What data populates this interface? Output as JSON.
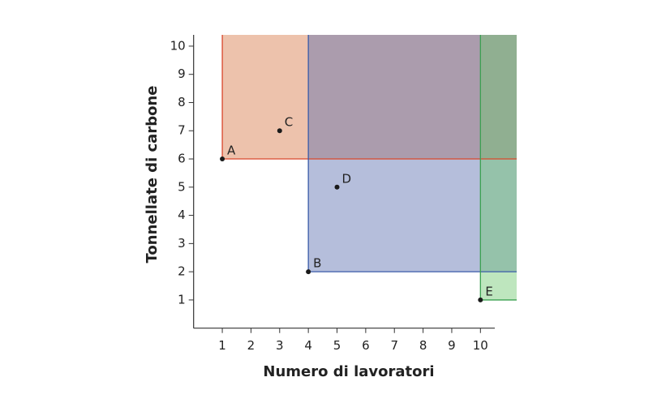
{
  "chart_data": {
    "type": "scatter",
    "x_label": "Numero di lavoratori",
    "y_label": "Tonnellate di carbone",
    "labels": [
      "A",
      "B",
      "C",
      "D",
      "E"
    ],
    "x": [
      1,
      4,
      3,
      5,
      10
    ],
    "values": [
      6,
      2,
      7,
      5,
      1
    ],
    "color": "#1a1a1a",
    "regions": [
      {
        "point": 0,
        "fill": "rgba(214,120,70,0.45)",
        "stroke": "#d9472b"
      },
      {
        "point": 1,
        "fill": "rgba(90,110,175,0.45)",
        "stroke": "#3a5ba8"
      },
      {
        "point": 4,
        "fill": "rgba(110,200,110,0.45)",
        "stroke": "#3aa050"
      }
    ],
    "xlim": [
      0,
      10.5
    ],
    "ylim": [
      0,
      10.4
    ],
    "xticks": [
      1,
      2,
      3,
      4,
      5,
      6,
      7,
      8,
      9,
      10
    ],
    "yticks": [
      1,
      2,
      3,
      4,
      5,
      6,
      7,
      8,
      9,
      10
    ]
  }
}
